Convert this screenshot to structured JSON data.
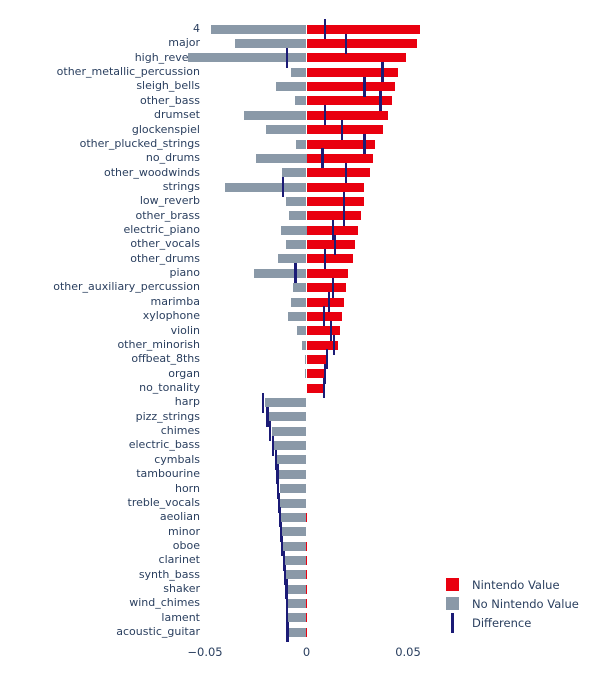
{
  "chart_data": {
    "type": "bar",
    "orientation": "horizontal",
    "title": "",
    "xlabel": "",
    "ylabel": "",
    "grid": false,
    "legend_position": "bottom-right",
    "xlim": [
      -0.075,
      0.08
    ],
    "x_ticks": [
      -0.05,
      0,
      0.05
    ],
    "x_tick_labels": [
      "−0.05",
      "0",
      "0.05"
    ],
    "categories": [
      "4",
      "major",
      "high_reverb",
      "other_metallic_percussion",
      "sleigh_bells",
      "other_bass",
      "drumset",
      "glockenspiel",
      "other_plucked_strings",
      "no_drums",
      "other_woodwinds",
      "strings",
      "low_reverb",
      "other_brass",
      "electric_piano",
      "other_vocals",
      "other_drums",
      "piano",
      "other_auxiliary_percussion",
      "marimba",
      "xylophone",
      "violin",
      "other_minorish",
      "offbeat_8ths",
      "organ",
      "no_tonality",
      "harp",
      "pizz_strings",
      "chimes",
      "electric_bass",
      "cymbals",
      "tambourine",
      "horn",
      "treble_vocals",
      "aeolian",
      "minor",
      "oboe",
      "clarinet",
      "synth_bass",
      "shaker",
      "wind_chimes",
      "lament",
      "acoustic_guitar"
    ],
    "series": [
      {
        "name": "Nintendo Value",
        "color": "#e9000f",
        "style": "bar",
        "values": [
          0.056,
          0.0545,
          0.049,
          0.045,
          0.0435,
          0.042,
          0.04,
          0.0375,
          0.0335,
          0.033,
          0.0315,
          0.0285,
          0.0285,
          0.027,
          0.0255,
          0.024,
          0.023,
          0.0205,
          0.0195,
          0.0185,
          0.0175,
          0.0165,
          0.0155,
          0.0105,
          0.0095,
          0.0085,
          -0.001,
          -0.0007,
          -0.001,
          -0.0005,
          -0.0005,
          -0.0007,
          -0.0008,
          -0.0006,
          -0.0004,
          -0.0006,
          -0.0003,
          -0.0004,
          -0.0004,
          -0.0003,
          -0.0003,
          -0.0003,
          -0.0003
        ]
      },
      {
        "name": "No Nintendo Value",
        "color": "#8a99a8",
        "style": "bar",
        "values": [
          -0.047,
          -0.035,
          -0.0585,
          -0.0075,
          -0.015,
          -0.0055,
          -0.031,
          -0.02,
          -0.005,
          -0.025,
          -0.012,
          -0.04,
          -0.01,
          -0.0085,
          -0.0125,
          -0.01,
          -0.014,
          -0.026,
          -0.0065,
          -0.0075,
          -0.009,
          -0.0045,
          -0.002,
          -0.0005,
          -0.0005,
          0.0,
          -0.0205,
          -0.0185,
          -0.017,
          -0.016,
          -0.0145,
          -0.0135,
          -0.0132,
          -0.013,
          -0.0127,
          -0.012,
          -0.0117,
          -0.0106,
          -0.0101,
          -0.0095,
          -0.0093,
          -0.0092,
          -0.0091
        ]
      },
      {
        "name": "Difference",
        "color": "#1b1b76",
        "style": "tick",
        "values": [
          0.009,
          0.0195,
          -0.0095,
          0.0375,
          0.0285,
          0.0365,
          0.009,
          0.0175,
          0.0285,
          0.008,
          0.0195,
          -0.0115,
          0.0185,
          0.0185,
          0.013,
          0.014,
          0.009,
          -0.0055,
          0.013,
          0.011,
          0.0085,
          0.012,
          0.0135,
          0.01,
          0.009,
          0.0085,
          -0.0215,
          -0.0192,
          -0.018,
          -0.0165,
          -0.015,
          -0.0142,
          -0.014,
          -0.0136,
          -0.0131,
          -0.0126,
          -0.012,
          -0.011,
          -0.0105,
          -0.0098,
          -0.0096,
          -0.0095,
          -0.0094
        ]
      }
    ]
  }
}
